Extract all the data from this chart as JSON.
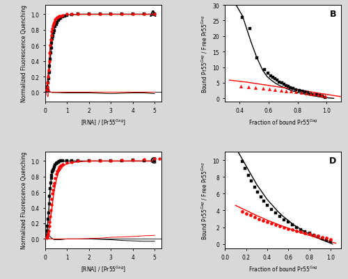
{
  "panel_A": {
    "label": "A",
    "black_scatter_x": [
      0.05,
      0.08,
      0.1,
      0.13,
      0.15,
      0.18,
      0.2,
      0.23,
      0.25,
      0.28,
      0.3,
      0.33,
      0.35,
      0.38,
      0.4,
      0.45,
      0.5,
      0.55,
      0.6,
      0.65,
      0.7,
      0.8,
      0.9,
      1.0,
      1.2,
      1.5,
      2.0,
      2.5,
      3.0,
      3.5,
      4.0,
      4.5,
      5.0
    ],
    "black_scatter_y": [
      0.01,
      0.04,
      0.07,
      0.12,
      0.17,
      0.25,
      0.33,
      0.42,
      0.5,
      0.57,
      0.63,
      0.68,
      0.72,
      0.76,
      0.79,
      0.84,
      0.87,
      0.9,
      0.92,
      0.94,
      0.95,
      0.97,
      0.98,
      0.99,
      0.995,
      1.0,
      1.0,
      1.0,
      1.0,
      1.0,
      1.0,
      1.0,
      1.0
    ],
    "red_scatter_x": [
      0.05,
      0.08,
      0.1,
      0.13,
      0.15,
      0.18,
      0.2,
      0.23,
      0.25,
      0.28,
      0.3,
      0.33,
      0.35,
      0.38,
      0.4,
      0.45,
      0.5,
      0.55,
      0.6,
      0.65,
      0.7,
      0.8,
      1.0,
      1.2,
      1.5,
      2.0,
      2.5,
      3.0,
      3.5,
      4.0,
      4.5,
      5.0
    ],
    "red_scatter_y": [
      0.03,
      0.07,
      0.12,
      0.2,
      0.28,
      0.4,
      0.5,
      0.6,
      0.67,
      0.73,
      0.78,
      0.82,
      0.85,
      0.88,
      0.9,
      0.93,
      0.95,
      0.96,
      0.97,
      0.975,
      0.98,
      0.99,
      1.0,
      1.0,
      1.0,
      1.0,
      1.0,
      1.0,
      1.0,
      1.0,
      1.0,
      1.0
    ],
    "black_fit_x": [
      0.0,
      0.03,
      0.06,
      0.08,
      0.1,
      0.12,
      0.15,
      0.18,
      0.2,
      0.23,
      0.25,
      0.28,
      0.3,
      0.35,
      0.4,
      0.45,
      0.5,
      0.6,
      0.7,
      0.8,
      1.0,
      1.5,
      2.0,
      3.0,
      5.0
    ],
    "black_fit_y": [
      0.0,
      0.015,
      0.03,
      0.05,
      0.08,
      0.12,
      0.18,
      0.26,
      0.33,
      0.42,
      0.5,
      0.57,
      0.63,
      0.72,
      0.79,
      0.84,
      0.87,
      0.92,
      0.95,
      0.97,
      0.99,
      1.0,
      1.0,
      1.0,
      1.0
    ],
    "red_fit_x": [
      0.0,
      0.03,
      0.06,
      0.08,
      0.1,
      0.12,
      0.15,
      0.18,
      0.2,
      0.23,
      0.25,
      0.28,
      0.3,
      0.35,
      0.4,
      0.5,
      0.6,
      0.7,
      0.8,
      1.0,
      1.5,
      2.0,
      3.0,
      5.0
    ],
    "red_fit_y": [
      0.0,
      0.02,
      0.05,
      0.09,
      0.14,
      0.2,
      0.29,
      0.41,
      0.5,
      0.6,
      0.67,
      0.73,
      0.78,
      0.85,
      0.9,
      0.95,
      0.97,
      0.975,
      0.98,
      0.99,
      1.0,
      1.0,
      1.0,
      1.0
    ],
    "black_resid_x": [
      0.0,
      0.08,
      0.12,
      0.15,
      0.17,
      0.19,
      0.22,
      0.25,
      0.3,
      0.5,
      1.0,
      2.0,
      2.5,
      3.0,
      3.5,
      4.0,
      4.5,
      5.0
    ],
    "black_resid_y": [
      0.0,
      0.0,
      0.005,
      0.01,
      0.015,
      0.01,
      0.005,
      0.0,
      -0.005,
      -0.005,
      -0.01,
      -0.01,
      -0.015,
      -0.02,
      -0.015,
      -0.01,
      -0.01,
      -0.02
    ],
    "red_resid_x": [
      0.0,
      0.05,
      0.08,
      0.1,
      0.12,
      0.14,
      0.16,
      0.18,
      0.2,
      0.25,
      0.3,
      0.5,
      1.0,
      5.0
    ],
    "red_resid_y": [
      0.0,
      0.0,
      -0.03,
      -0.05,
      -0.06,
      -0.04,
      0.02,
      0.04,
      0.01,
      0.0,
      0.0,
      0.0,
      0.0,
      0.0
    ],
    "xlabel": "[RNA] / [Pr55$^{Gag}$]",
    "ylabel": "Normalized Fluorescence Quenching",
    "xlim": [
      0,
      5.3
    ],
    "ylim": [
      -0.12,
      1.12
    ],
    "xticks": [
      0,
      1,
      2,
      3,
      4,
      5
    ],
    "yticks": [
      0.0,
      0.2,
      0.4,
      0.6,
      0.8,
      1.0
    ]
  },
  "panel_B": {
    "label": "B",
    "black_scatter_x": [
      0.42,
      0.47,
      0.52,
      0.57,
      0.595,
      0.615,
      0.63,
      0.645,
      0.66,
      0.675,
      0.69,
      0.705,
      0.72,
      0.735,
      0.75,
      0.77,
      0.79,
      0.81,
      0.83,
      0.85,
      0.87,
      0.89,
      0.91,
      0.93,
      0.95,
      0.97,
      0.99
    ],
    "black_scatter_y": [
      26.0,
      22.5,
      13.0,
      9.3,
      8.1,
      7.2,
      6.8,
      6.3,
      5.8,
      5.3,
      4.9,
      4.5,
      4.1,
      3.8,
      3.4,
      3.1,
      2.8,
      2.5,
      2.2,
      2.0,
      1.8,
      1.5,
      1.3,
      1.1,
      0.9,
      0.7,
      0.4
    ],
    "red_scatter_x": [
      0.41,
      0.46,
      0.51,
      0.56,
      0.605,
      0.645,
      0.685,
      0.72,
      0.755,
      0.79,
      0.825,
      0.86,
      0.89,
      0.915,
      0.94,
      0.965,
      0.99
    ],
    "red_scatter_y": [
      3.95,
      3.7,
      3.45,
      3.2,
      3.0,
      2.8,
      2.6,
      2.4,
      2.2,
      2.0,
      1.85,
      1.65,
      1.5,
      1.35,
      1.15,
      0.98,
      0.8
    ],
    "black_fit_x": [
      0.35,
      0.42,
      0.48,
      0.52,
      0.56,
      0.59,
      0.62,
      0.65,
      0.68,
      0.72,
      0.76,
      0.8,
      0.85,
      0.9,
      0.95,
      1.0,
      1.05
    ],
    "black_fit_y": [
      32.0,
      26.5,
      18.0,
      13.0,
      9.0,
      7.0,
      5.8,
      4.8,
      4.0,
      3.2,
      2.5,
      1.9,
      1.4,
      0.9,
      0.5,
      0.2,
      0.0
    ],
    "red_fit_x": [
      0.33,
      0.45,
      0.55,
      0.65,
      0.75,
      0.85,
      0.95,
      1.05,
      1.1
    ],
    "red_fit_y": [
      5.85,
      5.2,
      4.5,
      3.8,
      3.1,
      2.4,
      1.65,
      0.9,
      0.55
    ],
    "xlabel": "Fraction of bound Pr55$^{Gag}$",
    "ylabel": "Bound Pr55$^{Gag}$ / Free Pr55$^{Gag}$",
    "xlim": [
      0.3,
      1.1
    ],
    "ylim": [
      -1,
      30
    ],
    "xticks": [
      0.4,
      0.6,
      0.8,
      1.0
    ],
    "yticks": [
      0,
      5,
      10,
      15,
      20,
      25,
      30
    ]
  },
  "panel_C": {
    "label": "C",
    "black_scatter_x": [
      0.05,
      0.08,
      0.1,
      0.13,
      0.15,
      0.18,
      0.2,
      0.23,
      0.25,
      0.28,
      0.3,
      0.33,
      0.35,
      0.38,
      0.4,
      0.45,
      0.5,
      0.55,
      0.6,
      0.65,
      0.7,
      0.8,
      1.0,
      1.2,
      1.5,
      2.0,
      2.5,
      3.0,
      3.5,
      4.0,
      4.5,
      5.0
    ],
    "black_scatter_y": [
      0.04,
      0.1,
      0.16,
      0.25,
      0.33,
      0.45,
      0.55,
      0.65,
      0.72,
      0.78,
      0.82,
      0.86,
      0.88,
      0.9,
      0.92,
      0.95,
      0.97,
      0.98,
      0.99,
      0.995,
      1.0,
      1.0,
      1.0,
      1.0,
      1.0,
      1.0,
      1.0,
      1.0,
      1.0,
      1.01,
      1.0,
      1.0
    ],
    "red_scatter_x": [
      0.05,
      0.08,
      0.1,
      0.13,
      0.15,
      0.18,
      0.2,
      0.23,
      0.25,
      0.28,
      0.3,
      0.33,
      0.35,
      0.38,
      0.4,
      0.45,
      0.5,
      0.55,
      0.6,
      0.65,
      0.7,
      0.8,
      1.0,
      1.2,
      1.5,
      2.0,
      2.5,
      3.0,
      3.5,
      4.0,
      4.5,
      5.0,
      5.2
    ],
    "red_scatter_y": [
      0.01,
      0.02,
      0.04,
      0.07,
      0.1,
      0.16,
      0.22,
      0.29,
      0.37,
      0.44,
      0.51,
      0.58,
      0.63,
      0.68,
      0.72,
      0.78,
      0.83,
      0.87,
      0.9,
      0.92,
      0.94,
      0.96,
      0.98,
      0.99,
      1.0,
      1.0,
      1.0,
      1.0,
      1.01,
      1.01,
      1.02,
      1.03,
      1.03
    ],
    "black_fit_x": [
      0.0,
      0.03,
      0.06,
      0.08,
      0.1,
      0.13,
      0.15,
      0.18,
      0.2,
      0.23,
      0.25,
      0.28,
      0.3,
      0.35,
      0.4,
      0.45,
      0.5,
      0.6,
      0.7,
      0.8,
      1.0,
      1.5,
      2.0,
      3.0,
      5.0
    ],
    "black_fit_y": [
      0.0,
      0.02,
      0.06,
      0.1,
      0.15,
      0.25,
      0.33,
      0.45,
      0.55,
      0.65,
      0.72,
      0.78,
      0.82,
      0.88,
      0.92,
      0.95,
      0.97,
      0.99,
      0.995,
      1.0,
      1.0,
      1.0,
      1.0,
      1.0,
      1.0
    ],
    "red_fit_x": [
      0.0,
      0.05,
      0.1,
      0.15,
      0.2,
      0.25,
      0.3,
      0.35,
      0.4,
      0.5,
      0.6,
      0.8,
      1.0,
      1.5,
      2.0,
      3.0,
      4.0,
      5.0
    ],
    "red_fit_y": [
      0.0,
      0.02,
      0.05,
      0.1,
      0.18,
      0.28,
      0.38,
      0.5,
      0.6,
      0.75,
      0.85,
      0.93,
      0.97,
      0.99,
      1.0,
      1.0,
      1.0,
      1.0
    ],
    "black_resid_x": [
      0.0,
      0.05,
      0.1,
      0.15,
      0.2,
      0.25,
      0.3,
      0.35,
      0.4,
      0.5,
      0.7,
      1.0,
      2.0,
      3.0,
      3.5,
      4.0,
      4.5,
      5.0
    ],
    "black_resid_y": [
      0.0,
      0.01,
      0.03,
      0.04,
      0.04,
      0.02,
      0.01,
      0.0,
      -0.01,
      -0.01,
      -0.01,
      0.0,
      0.0,
      -0.01,
      -0.02,
      -0.025,
      -0.03,
      -0.03
    ],
    "red_resid_x": [
      0.0,
      0.1,
      0.5,
      1.0,
      1.5,
      2.0,
      2.5,
      3.0,
      3.5,
      4.0,
      4.5,
      5.0
    ],
    "red_resid_y": [
      0.0,
      0.0,
      0.0,
      0.0,
      0.0,
      0.005,
      0.01,
      0.02,
      0.025,
      0.03,
      0.04,
      0.045
    ],
    "xlabel": "[RNA] / [Pr55$^{Gag}$]",
    "ylabel": "Normalized Fluorescence Quenching",
    "xlim": [
      0,
      5.3
    ],
    "ylim": [
      -0.12,
      1.12
    ],
    "xticks": [
      0,
      1,
      2,
      3,
      4,
      5
    ],
    "yticks": [
      0.0,
      0.2,
      0.4,
      0.6,
      0.8,
      1.0
    ]
  },
  "panel_D": {
    "label": "D",
    "black_scatter_x": [
      0.16,
      0.19,
      0.22,
      0.25,
      0.28,
      0.31,
      0.34,
      0.37,
      0.4,
      0.44,
      0.48,
      0.52,
      0.56,
      0.6,
      0.64,
      0.68,
      0.72,
      0.76,
      0.8,
      0.84,
      0.88,
      0.92,
      0.96,
      1.0
    ],
    "black_scatter_y": [
      9.8,
      9.0,
      8.2,
      7.5,
      6.8,
      6.2,
      5.6,
      5.1,
      4.6,
      4.1,
      3.7,
      3.3,
      2.9,
      2.6,
      2.3,
      2.0,
      1.75,
      1.5,
      1.28,
      1.08,
      0.88,
      0.68,
      0.48,
      0.28
    ],
    "red_scatter_x": [
      0.16,
      0.2,
      0.24,
      0.28,
      0.32,
      0.36,
      0.4,
      0.44,
      0.48,
      0.52,
      0.56,
      0.6,
      0.64,
      0.68,
      0.72,
      0.76,
      0.8,
      0.84,
      0.88,
      0.92,
      0.96,
      1.0
    ],
    "red_scatter_y": [
      3.9,
      3.65,
      3.42,
      3.2,
      3.0,
      2.8,
      2.62,
      2.44,
      2.28,
      2.12,
      1.97,
      1.83,
      1.7,
      1.57,
      1.44,
      1.32,
      1.2,
      1.08,
      0.96,
      0.84,
      0.72,
      0.6
    ],
    "black_fit_x": [
      0.1,
      0.15,
      0.2,
      0.25,
      0.3,
      0.35,
      0.4,
      0.45,
      0.5,
      0.55,
      0.6,
      0.65,
      0.7,
      0.75,
      0.8,
      0.85,
      0.9,
      0.95,
      1.0,
      1.02
    ],
    "black_fit_y": [
      11.5,
      10.4,
      9.3,
      8.2,
      7.1,
      6.2,
      5.3,
      4.6,
      3.9,
      3.3,
      2.8,
      2.3,
      1.9,
      1.5,
      1.2,
      0.9,
      0.6,
      0.35,
      0.1,
      0.0
    ],
    "red_fit_x": [
      0.1,
      0.2,
      0.3,
      0.4,
      0.5,
      0.6,
      0.7,
      0.8,
      0.9,
      1.0,
      1.05
    ],
    "red_fit_y": [
      4.6,
      4.0,
      3.4,
      2.85,
      2.35,
      1.88,
      1.43,
      1.02,
      0.64,
      0.28,
      0.1
    ],
    "xlabel": "Fraction of bound Pr55$^{Gag}$",
    "ylabel": "Bound Pr55$^{Gag}$ / Free Pr55$^{Gag}$",
    "xlim": [
      0.0,
      1.1
    ],
    "ylim": [
      -0.5,
      11
    ],
    "xticks": [
      0.0,
      0.2,
      0.4,
      0.6,
      0.8,
      1.0
    ],
    "yticks": [
      0,
      2,
      4,
      6,
      8,
      10
    ]
  },
  "bg_color": "#d8d8d8",
  "plot_bg_color": "#ffffff"
}
